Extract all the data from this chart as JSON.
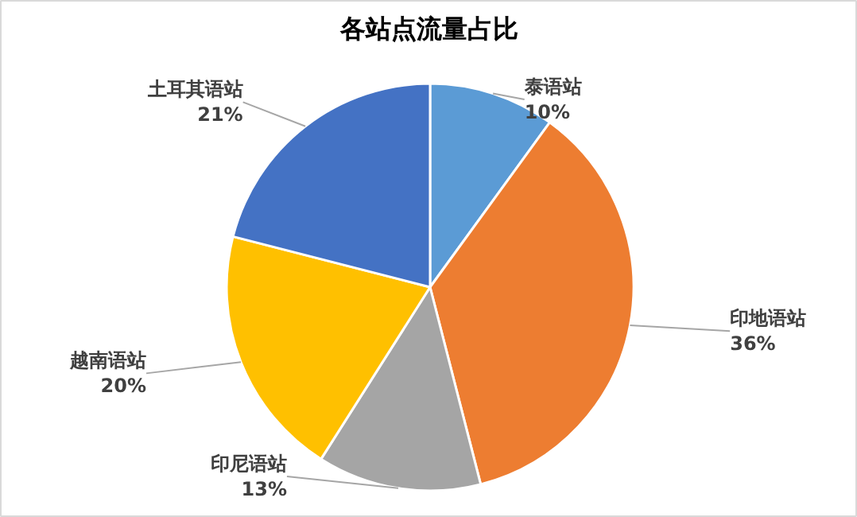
{
  "chart_data": {
    "type": "pie",
    "title": "各站点流量占比",
    "categories": [
      "泰语站",
      "印地语站",
      "印尼语站",
      "越南语站",
      "土耳其语站"
    ],
    "values": [
      10,
      36,
      13,
      20,
      21
    ],
    "colors": [
      "#5b9bd5",
      "#ed7d31",
      "#a5a5a5",
      "#ffc000",
      "#4472c4"
    ],
    "data_labels": true,
    "value_labels": [
      "10%",
      "36%",
      "13%",
      "20%",
      "21%"
    ]
  }
}
